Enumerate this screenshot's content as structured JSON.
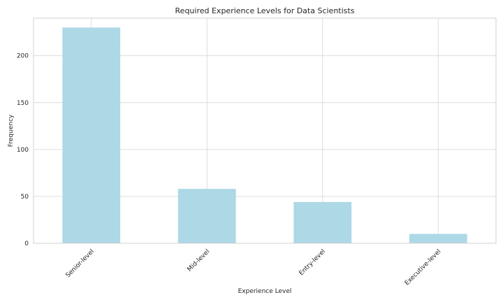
{
  "chart_data": {
    "type": "bar",
    "title": "Required Experience Levels for Data Scientists",
    "xlabel": "Experience Level",
    "ylabel": "Frequency",
    "categories": [
      "Senior-level",
      "Mid-level",
      "Entry-level",
      "Executive-level"
    ],
    "values": [
      230,
      58,
      44,
      10
    ],
    "ylim": [
      0,
      240
    ],
    "yticks": [
      0,
      50,
      100,
      150,
      200
    ],
    "grid": true,
    "bar_color": "#add8e6"
  }
}
